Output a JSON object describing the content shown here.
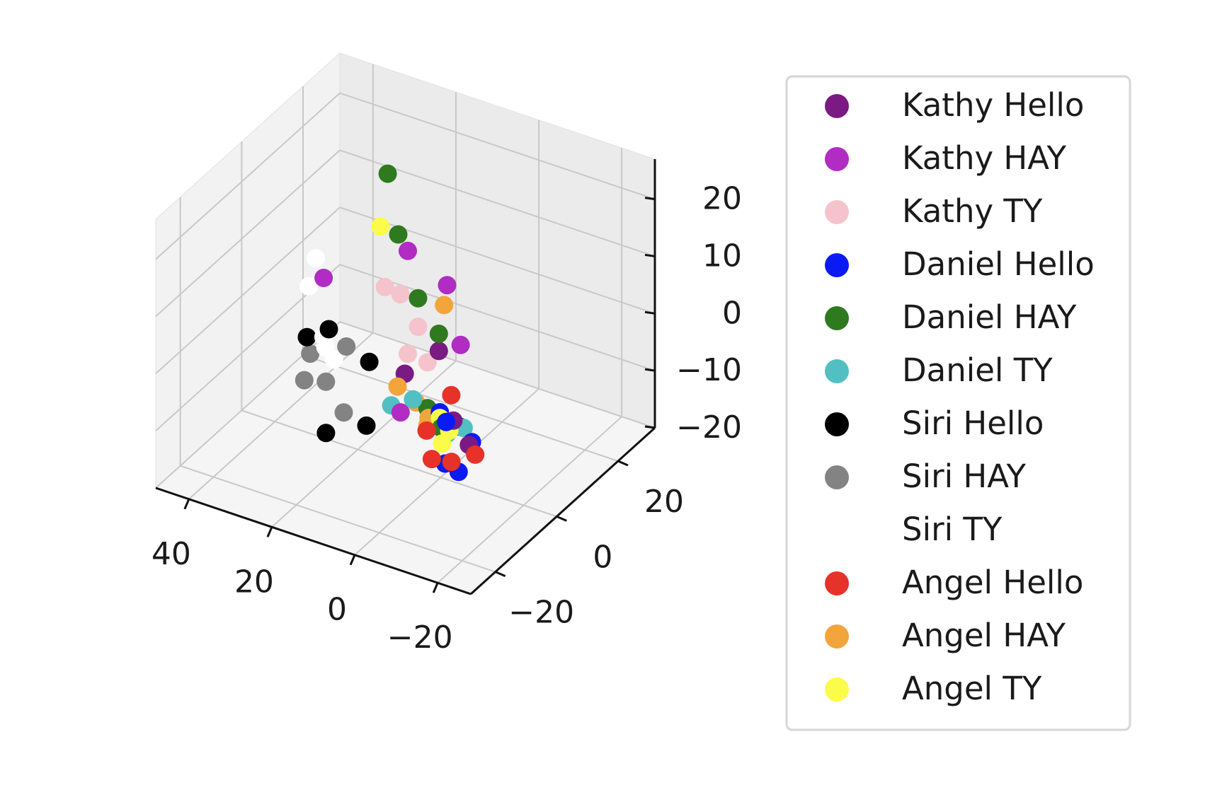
{
  "chart_data": {
    "type": "scatter",
    "projection": "3d",
    "grid": true,
    "legend_position": "right",
    "x_ticks": [
      -20,
      0,
      20,
      40
    ],
    "y_ticks": [
      -20,
      0,
      20
    ],
    "z_ticks": [
      -20,
      -10,
      0,
      10,
      20
    ],
    "x_tick_labels": [
      "−20",
      "0",
      "20",
      "40"
    ],
    "y_tick_labels": [
      "−20",
      "0",
      "20"
    ],
    "z_tick_labels": [
      "−20",
      "−10",
      "0",
      "10",
      "20"
    ],
    "xlim": [
      -28,
      48
    ],
    "ylim": [
      -28,
      32
    ],
    "zlim": [
      -20,
      27
    ],
    "series": [
      {
        "name": "Kathy Hello",
        "color": "#7b1a82",
        "points": [
          [
            -12,
            -7,
            -8
          ],
          [
            -4,
            -6,
            6
          ],
          [
            2,
            -9,
            2
          ],
          [
            -9,
            -8,
            -4
          ]
        ]
      },
      {
        "name": "Kathy HAY",
        "color": "#b02cc2",
        "points": [
          [
            -6,
            -6,
            18
          ],
          [
            2,
            -8,
            23
          ],
          [
            -10,
            -7,
            9
          ],
          [
            3,
            -9,
            -5
          ],
          [
            26,
            -3,
            10
          ]
        ]
      },
      {
        "name": "Kathy TY",
        "color": "#f5c3cc",
        "points": [
          [
            6,
            -5,
            13
          ],
          [
            1,
            -6,
            9
          ],
          [
            2,
            -8,
            5
          ],
          [
            -2,
            -7,
            4
          ],
          [
            9,
            -6,
            14
          ]
        ]
      },
      {
        "name": "Daniel Hello",
        "color": "#0a1af5",
        "points": [
          [
            -8,
            -9,
            -4
          ],
          [
            -5,
            -7,
            -4
          ],
          [
            -9,
            -6,
            -6
          ],
          [
            -12,
            -6,
            -8
          ],
          [
            -7,
            -8,
            -12
          ],
          [
            -11,
            -9,
            -12
          ]
        ]
      },
      {
        "name": "Daniel HAY",
        "color": "#2f7a1e",
        "points": [
          [
            15,
            3,
            28
          ],
          [
            8,
            -3,
            22
          ],
          [
            1,
            -6,
            14
          ],
          [
            -4,
            -6,
            9
          ],
          [
            -2,
            -7,
            -4
          ],
          [
            -6,
            -8,
            -6
          ]
        ]
      },
      {
        "name": "Daniel TY",
        "color": "#52bfc2",
        "points": [
          [
            0,
            -9,
            -2
          ],
          [
            6,
            -8,
            -5
          ],
          [
            -10,
            -6,
            -6
          ],
          [
            -6,
            -6,
            -8
          ]
        ]
      },
      {
        "name": "Siri Hello",
        "color": "#000000",
        "points": [
          [
            12,
            -8,
            -10
          ],
          [
            21,
            -9,
            -13
          ],
          [
            15,
            -3,
            -2
          ],
          [
            24,
            -4,
            2
          ],
          [
            33,
            1,
            -4
          ]
        ]
      },
      {
        "name": "Siri HAY",
        "color": "#838383",
        "points": [
          [
            33,
            13,
            -23
          ],
          [
            41,
            18,
            -22
          ],
          [
            44,
            15,
            -21
          ],
          [
            47,
            21,
            -20
          ],
          [
            22,
            -1,
            -2
          ]
        ]
      },
      {
        "name": "Siri TY",
        "color": "#ffffff",
        "points": [
          [
            25,
            -1,
            -5
          ],
          [
            29,
            1,
            -3
          ],
          [
            30,
            3,
            -6
          ],
          [
            37,
            7,
            1
          ],
          [
            39,
            12,
            3
          ]
        ]
      },
      {
        "name": "Angel Hello",
        "color": "#e63228",
        "points": [
          [
            -15,
            -9,
            -8
          ],
          [
            -10,
            -10,
            -10
          ],
          [
            -6,
            -11,
            -10
          ],
          [
            -7,
            -6,
            -1
          ],
          [
            -4,
            -10,
            -6
          ]
        ]
      },
      {
        "name": "Angel HAY",
        "color": "#f2a53a",
        "points": [
          [
            -2,
            -7,
            -7
          ],
          [
            -3,
            -8,
            -5
          ],
          [
            3,
            -10,
            0
          ],
          [
            0,
            -8,
            -3
          ],
          [
            -6,
            -7,
            15
          ]
        ]
      },
      {
        "name": "Angel TY",
        "color": "#fbfb4a",
        "points": [
          [
            16,
            2,
            19
          ],
          [
            -8,
            -8,
            -6
          ],
          [
            -5,
            -7,
            -5
          ],
          [
            -7,
            -9,
            -8
          ]
        ]
      }
    ]
  }
}
